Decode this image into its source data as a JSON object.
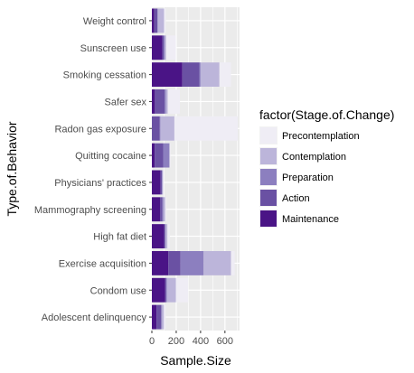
{
  "chart_data": {
    "type": "bar",
    "orientation": "horizontal",
    "stacked": true,
    "xlabel": "Sample.Size",
    "ylabel": "Type.of.Behavior",
    "xlim": [
      0,
      720
    ],
    "xticks": [
      0,
      200,
      400,
      600
    ],
    "grid": true,
    "legend_position": "right",
    "categories": [
      "Adolescent delinquency",
      "Condom use",
      "Exercise acquisition",
      "High fat diet",
      "Mammography screening",
      "Physicians' practices",
      "Quitting cocaine",
      "Radon gas exposure",
      "Safer sex",
      "Smoking cessation",
      "Sunscreen use",
      "Weight control"
    ],
    "legend": {
      "title": "factor(Stage.of.Change)",
      "entries": [
        "Precontemplation",
        "Contemplation",
        "Preparation",
        "Action",
        "Maintenance"
      ]
    },
    "series": [
      {
        "name": "Maintenance",
        "color": "#4a1486",
        "values": [
          38,
          108,
          135,
          100,
          67,
          70,
          23,
          0,
          25,
          250,
          85,
          20
        ]
      },
      {
        "name": "Action",
        "color": "#6a51a3",
        "values": [
          38,
          10,
          100,
          8,
          18,
          12,
          70,
          65,
          80,
          140,
          12,
          25
        ]
      },
      {
        "name": "Preparation",
        "color": "#8c7fbf",
        "values": [
          8,
          5,
          190,
          5,
          10,
          5,
          50,
          5,
          10,
          10,
          10,
          5
        ]
      },
      {
        "name": "Contemplation",
        "color": "#bcb5da",
        "values": [
          15,
          75,
          225,
          15,
          15,
          5,
          5,
          115,
          15,
          155,
          10,
          50
        ]
      },
      {
        "name": "Precontemplation",
        "color": "#efedf5",
        "values": [
          15,
          100,
          30,
          20,
          10,
          5,
          5,
          520,
          100,
          95,
          80,
          15
        ]
      }
    ]
  }
}
